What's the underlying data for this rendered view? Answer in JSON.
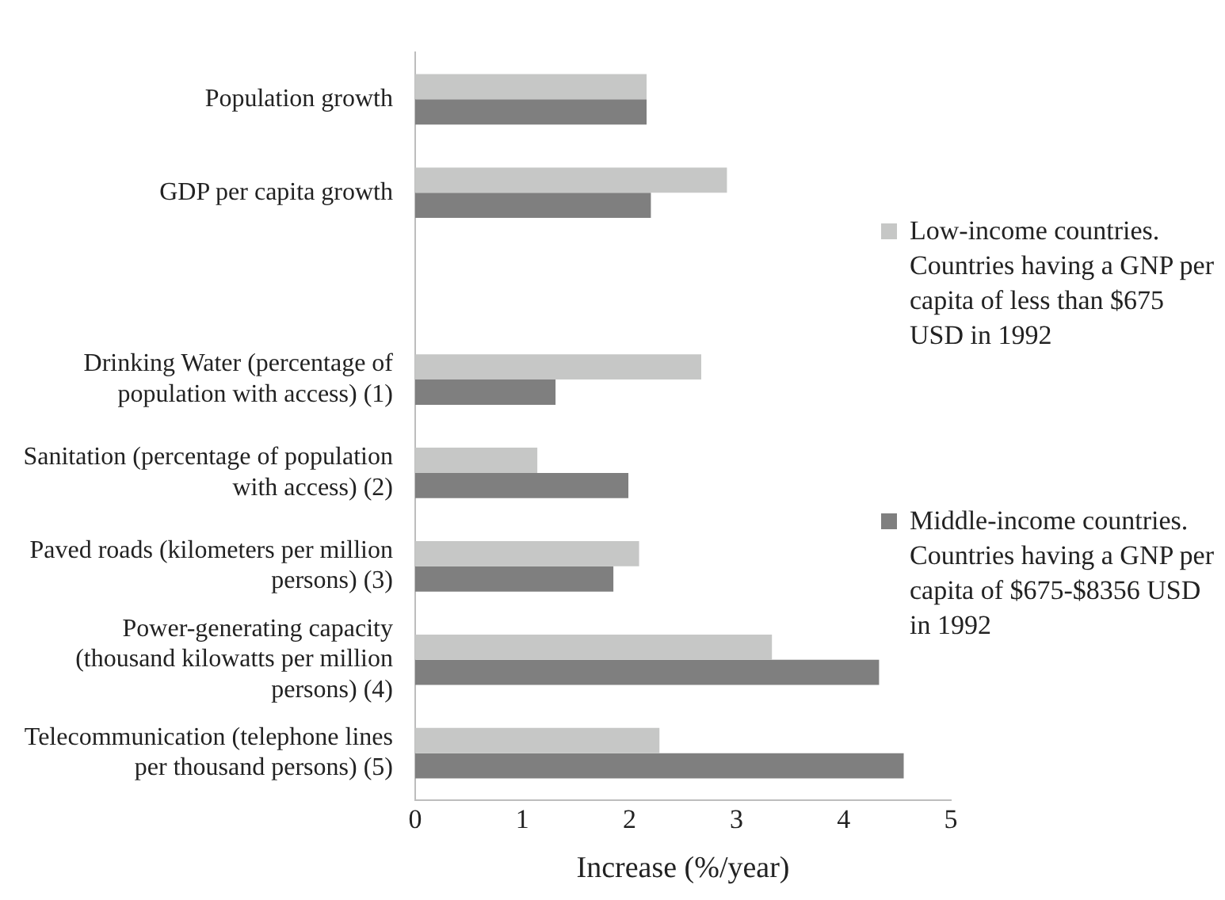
{
  "chart_data": {
    "type": "bar",
    "orientation": "horizontal",
    "categories": [
      "Population growth",
      "GDP per capita growth",
      null,
      "Drinking Water (percentage of population with access) (1)",
      "Sanitation (percentage of population with access) (2)",
      "Paved roads (kilometers per million persons) (3)",
      "Power-generating capacity (thousand kilowatts per million persons) (4)",
      "Telecommunication (telephone lines per thousand persons) (5)"
    ],
    "series": [
      {
        "name": "Low-income countries. Countries having a GNP per capita of less than $675 USD in 1992",
        "color": "#c6c7c6",
        "values": [
          2.16,
          2.91,
          null,
          2.67,
          1.14,
          2.09,
          3.33,
          2.28
        ]
      },
      {
        "name": "Middle-income countries. Countries having a GNP per capita of $675-$8356 USD in 1992",
        "color": "#7f7f7f",
        "values": [
          2.16,
          2.2,
          null,
          1.31,
          1.99,
          1.85,
          4.33,
          4.56
        ]
      }
    ],
    "xlim": [
      0,
      5
    ],
    "xticks": [
      0,
      1,
      2,
      3,
      4,
      5
    ],
    "xlabel": "Increase (%/year)",
    "grid": false,
    "legend": "right"
  }
}
